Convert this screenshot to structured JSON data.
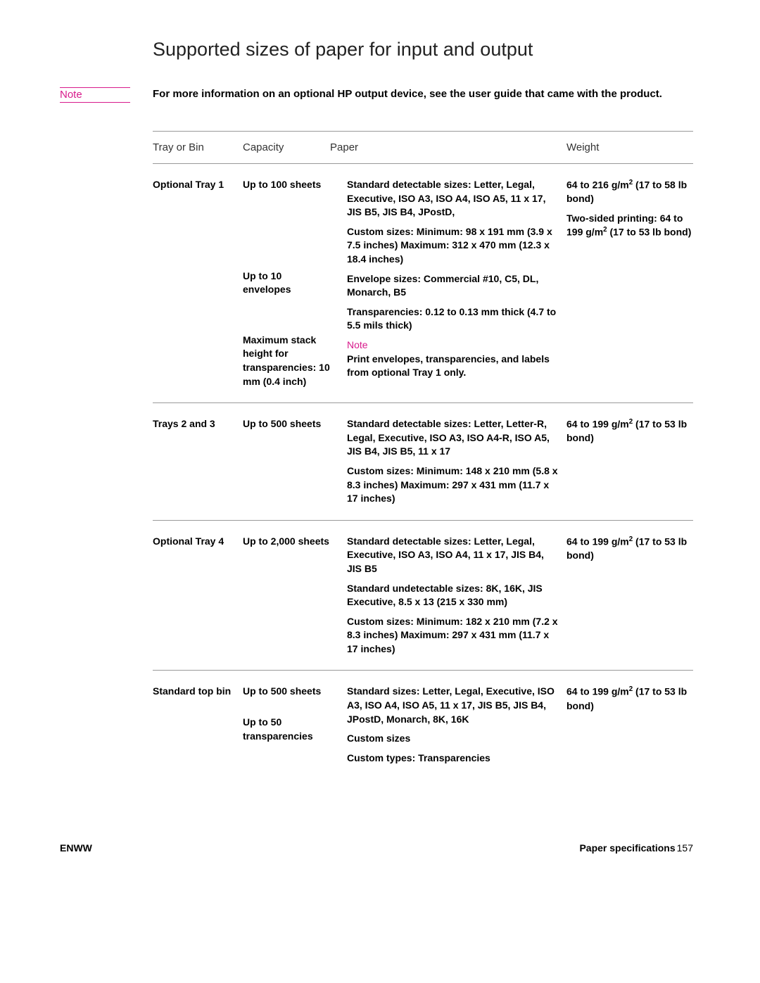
{
  "title": "Supported sizes of paper for input and output",
  "note": {
    "label": "Note",
    "text": "For more information on an optional HP output device, see the user guide that came with the product."
  },
  "table": {
    "headers": {
      "tray": "Tray or Bin",
      "capacity": "Capacity",
      "paper": "Paper",
      "weight": "Weight"
    },
    "rows": [
      {
        "tray": "Optional Tray 1",
        "capacity": [
          "Up to 100 sheets",
          "Up to 10 envelopes",
          "Maximum stack height for transparencies: 10 mm (0.4 inch)"
        ],
        "paper": [
          "Standard detectable sizes: Letter, Legal, Executive, ISO A3, ISO A4, ISO A5, 11 x 17, JIS B5, JIS B4, JPostD,",
          "Custom sizes: Minimum: 98 x 191 mm (3.9 x 7.5 inches) Maximum: 312 x 470 mm (12.3 x 18.4 inches)",
          "Envelope sizes: Commercial #10, C5, DL, Monarch, B5",
          "Transparencies: 0.12 to 0.13 mm thick (4.7 to 5.5 mils thick)"
        ],
        "paper_note": {
          "label": "Note",
          "text": "Print envelopes, transparencies, and labels from optional Tray 1 only."
        },
        "weight": [
          "64 to 216 g/m² (17 to 58 lb bond)",
          "Two-sided printing: 64 to 199 g/m² (17 to 53 lb bond)"
        ]
      },
      {
        "tray": "Trays 2 and 3",
        "capacity": [
          "Up to 500 sheets"
        ],
        "paper": [
          "Standard detectable sizes: Letter, Letter-R, Legal, Executive, ISO A3, ISO A4-R, ISO A5, JIS B4, JIS B5, 11 x 17",
          "Custom sizes: Minimum: 148 x 210 mm (5.8 x 8.3 inches) Maximum: 297 x 431 mm (11.7 x 17 inches)"
        ],
        "weight": [
          "64 to 199 g/m² (17 to 53 lb bond)"
        ]
      },
      {
        "tray": "Optional Tray 4",
        "capacity": [
          "Up to 2,000 sheets"
        ],
        "paper": [
          "Standard detectable sizes: Letter, Legal, Executive, ISO A3, ISO A4, 11 x 17, JIS B4, JIS B5",
          "Standard undetectable sizes: 8K, 16K, JIS Executive, 8.5 x 13 (215 x 330 mm)",
          "Custom sizes: Minimum: 182 x 210 mm (7.2 x 8.3 inches) Maximum: 297 x 431 mm (11.7 x 17 inches)"
        ],
        "weight": [
          "64 to 199 g/m² (17 to 53 lb bond)"
        ]
      },
      {
        "tray": "Standard top bin",
        "capacity": [
          "Up to 500 sheets",
          "Up to 50 transparencies"
        ],
        "paper": [
          "Standard sizes: Letter, Legal, Executive, ISO A3, ISO A4, ISO A5, 11 x 17, JIS B5, JIS B4, JPostD, Monarch, 8K, 16K",
          "Custom sizes",
          "Custom types: Transparencies"
        ],
        "weight": [
          "64 to 199 g/m² (17 to 53 lb bond)"
        ]
      }
    ]
  },
  "footer": {
    "left": "ENWW",
    "right_label": "Paper specifications",
    "page_number": "157"
  },
  "colors": {
    "note_color": "#d81b8c",
    "text_color": "#000000",
    "rule_color": "#999999"
  }
}
